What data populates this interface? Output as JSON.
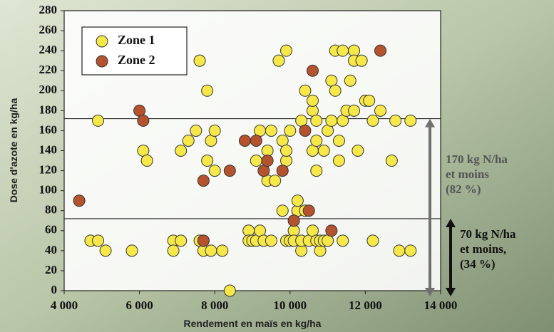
{
  "chart_data": {
    "type": "scatter",
    "x_label": "Rendement en maïs en kg/ha",
    "y_label": "Dose d'azote en kg/ha",
    "xlim": [
      4000,
      14000
    ],
    "xticks": [
      {
        "value": 4000,
        "label": "4 000"
      },
      {
        "value": 6000,
        "label": "6 000"
      },
      {
        "value": 8000,
        "label": "8 000"
      },
      {
        "value": 10000,
        "label": "10 000"
      },
      {
        "value": 12000,
        "label": "12 000"
      },
      {
        "value": 14000,
        "label": "14 000"
      }
    ],
    "ylim": [
      0,
      280
    ],
    "yticks": [
      0,
      20,
      40,
      60,
      80,
      100,
      120,
      140,
      160,
      180,
      200,
      220,
      240,
      260,
      280
    ],
    "reference_lines": [
      172,
      72
    ],
    "legend_position": "upper left",
    "series": [
      {
        "name": "Zone 1",
        "color": "#f7e84a",
        "x": [
          4700,
          4900,
          4900,
          5100,
          5800,
          6100,
          6200,
          6900,
          6900,
          7100,
          7100,
          7300,
          7500,
          7600,
          7600,
          7700,
          7700,
          7800,
          7800,
          7900,
          7900,
          8000,
          8000,
          8200,
          8400,
          8900,
          8900,
          9000,
          9100,
          9100,
          9200,
          9200,
          9300,
          9400,
          9400,
          9500,
          9500,
          9600,
          9700,
          9800,
          9800,
          9900,
          9900,
          9900,
          9900,
          10000,
          10000,
          10100,
          10100,
          10200,
          10200,
          10200,
          10300,
          10300,
          10300,
          10400,
          10400,
          10500,
          10600,
          10600,
          10600,
          10600,
          10700,
          10700,
          10700,
          10700,
          10800,
          10800,
          10900,
          10900,
          11000,
          11000,
          11100,
          11100,
          11200,
          11200,
          11300,
          11300,
          11400,
          11400,
          11400,
          11500,
          11600,
          11700,
          11700,
          11700,
          11800,
          11900,
          12000,
          12100,
          12200,
          12200,
          12400,
          12700,
          12800,
          12900,
          13200,
          13200
        ],
        "values": [
          50,
          50,
          170,
          40,
          40,
          140,
          130,
          50,
          40,
          50,
          140,
          150,
          160,
          230,
          50,
          40,
          50,
          130,
          200,
          40,
          150,
          120,
          160,
          40,
          0,
          60,
          50,
          50,
          130,
          50,
          60,
          160,
          50,
          140,
          110,
          160,
          50,
          110,
          230,
          80,
          150,
          130,
          140,
          240,
          50,
          50,
          160,
          60,
          50,
          80,
          80,
          90,
          170,
          40,
          50,
          200,
          80,
          50,
          60,
          140,
          180,
          190,
          120,
          170,
          150,
          50,
          40,
          50,
          50,
          140,
          160,
          50,
          210,
          170,
          200,
          240,
          150,
          130,
          240,
          170,
          50,
          180,
          210,
          240,
          230,
          180,
          140,
          230,
          190,
          190,
          170,
          50,
          180,
          130,
          170,
          40,
          170,
          40
        ]
      },
      {
        "name": "Zone 2",
        "color": "#b5532e",
        "x": [
          4400,
          6000,
          6100,
          7700,
          7700,
          8400,
          8800,
          9100,
          9300,
          9400,
          9800,
          10100,
          10400,
          10500,
          10600,
          11100,
          12400
        ],
        "values": [
          90,
          180,
          170,
          50,
          110,
          120,
          150,
          150,
          120,
          130,
          120,
          70,
          160,
          80,
          220,
          60,
          240
        ]
      }
    ],
    "annotations": [
      {
        "lines": [
          "170 kg N/ha",
          "et moins",
          "(82 %)"
        ]
      },
      {
        "lines": [
          "70 kg N/ha",
          "et moins,",
          "(34 %)"
        ]
      }
    ]
  }
}
